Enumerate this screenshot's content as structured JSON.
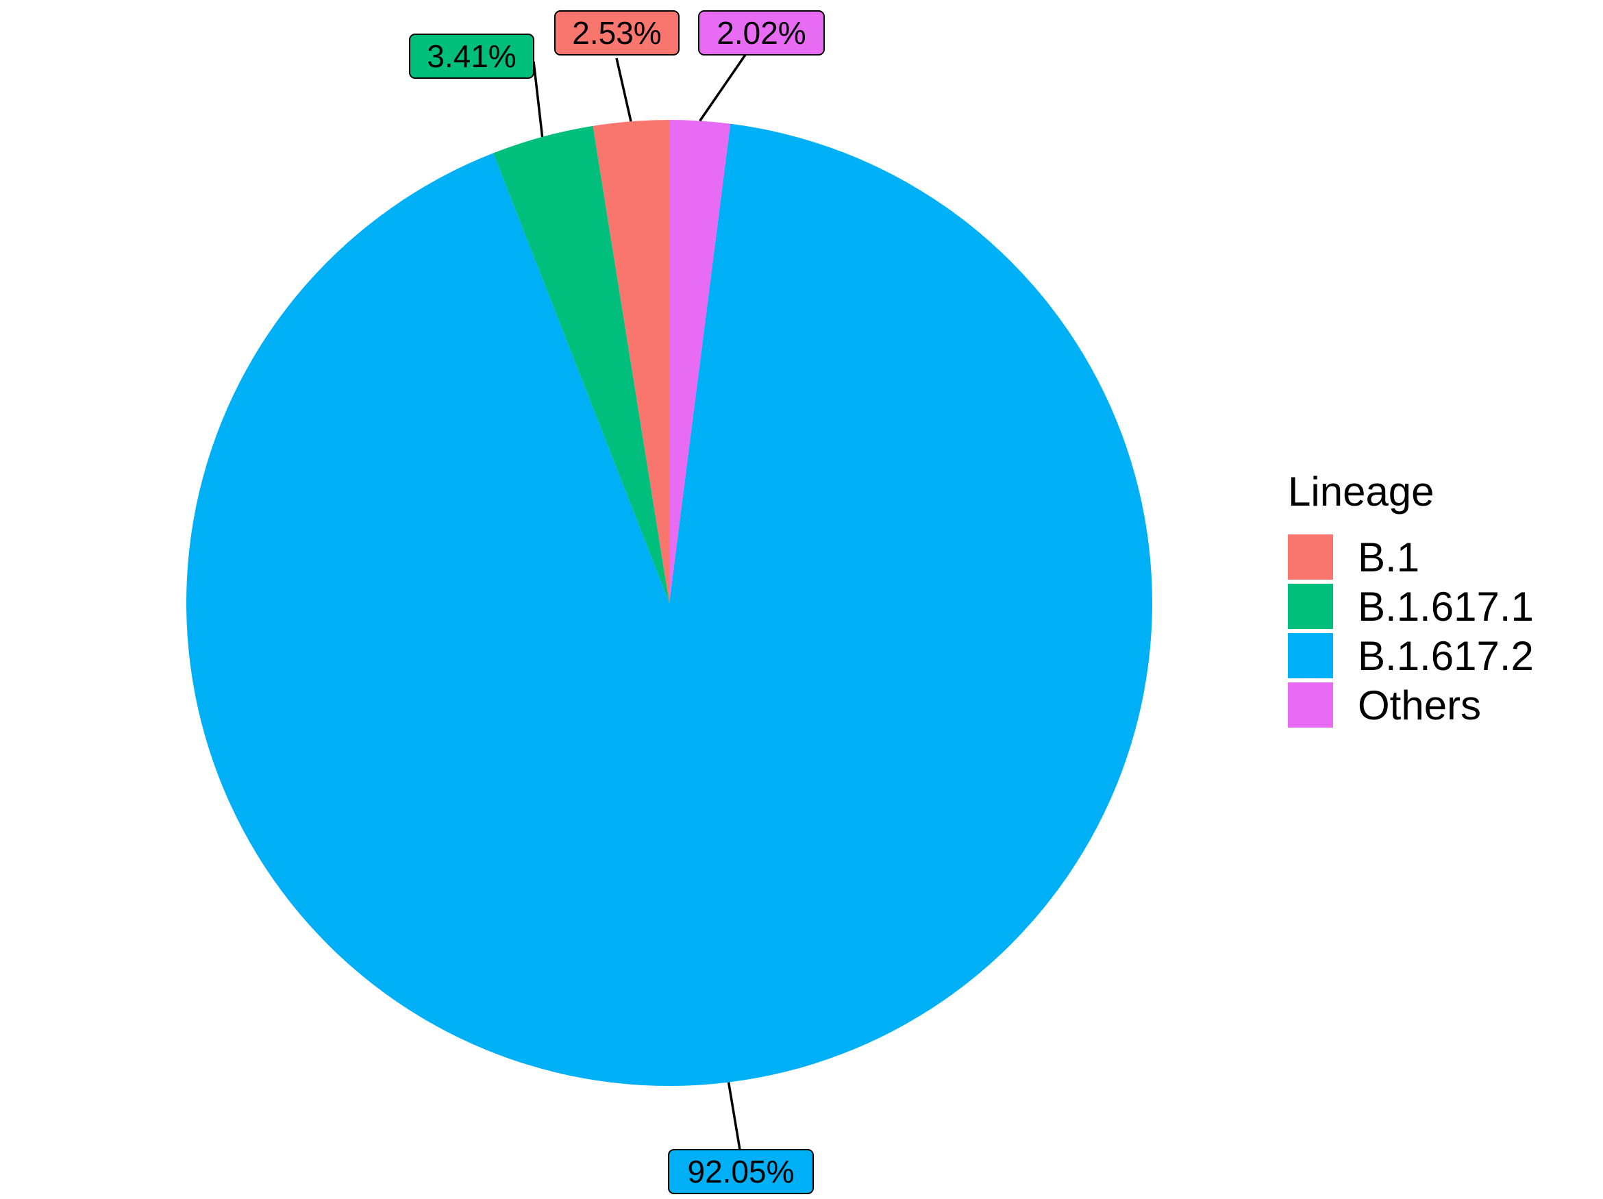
{
  "chart_data": {
    "type": "pie",
    "legend_title": "Lineage",
    "legend_position": "right",
    "slices": [
      {
        "name": "B.1",
        "value": 2.53,
        "label": "2.53%",
        "color": "#F8766D"
      },
      {
        "name": "B.1.617.1",
        "value": 3.41,
        "label": "3.41%",
        "color": "#00BF7D"
      },
      {
        "name": "B.1.617.2",
        "value": 92.05,
        "label": "92.05%",
        "color": "#00B0F6"
      },
      {
        "name": "Others",
        "value": 2.02,
        "label": "2.02%",
        "color": "#E76BF3"
      }
    ],
    "direction": "counter-clockwise from top"
  }
}
